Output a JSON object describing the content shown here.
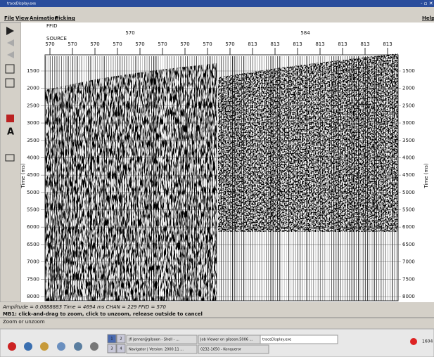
{
  "window": {
    "title": "traceDisplay.exe"
  },
  "menu": [
    "File",
    "View",
    "Animation",
    "Picking"
  ],
  "help": "Help",
  "header": {
    "row_labels": [
      "FFID",
      "SOURCE"
    ],
    "groups": [
      "570",
      "584"
    ],
    "traces": [
      "570",
      "570",
      "570",
      "570",
      "570",
      "570",
      "570",
      "570",
      "570",
      "813",
      "813",
      "813",
      "813",
      "813",
      "813",
      "813"
    ]
  },
  "y_axis": {
    "label": "Time (ms)",
    "ticks": [
      1500,
      2000,
      2500,
      3000,
      3500,
      4000,
      4500,
      5000,
      5500,
      6000,
      6500,
      7000,
      7500,
      8000
    ]
  },
  "status": {
    "readout": "Amplitude = 0.0888883  Time = 4694 ms  CHAN = 229  FFID = 570",
    "hint": "MB1: click-and-drag to zoom, click to unzoom, release outside to cancel",
    "message": "Zoom or unzoom"
  },
  "taskbar": {
    "desktops": [
      "1",
      "2",
      "3",
      "4"
    ],
    "tasks": [
      "jfl jenner@gilsoon - Shell - ...",
      "Job Viewer on gilsoon:5006 ...",
      "traceDisplay.exe",
      "Navigator | Version: 2000.11 ...",
      "0232-1650 - Konqueror"
    ],
    "clock": "1604"
  }
}
